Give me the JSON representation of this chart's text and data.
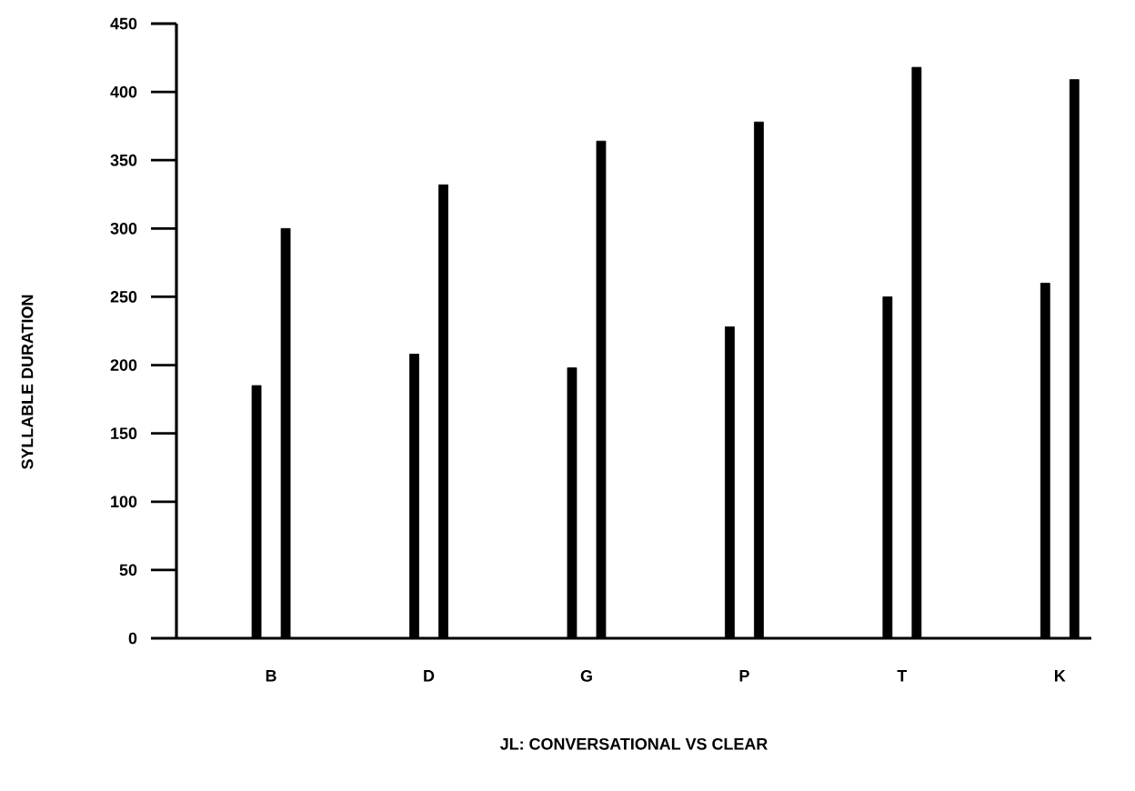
{
  "chart_data": {
    "type": "bar",
    "xlabel": "JL: CONVERSATIONAL VS CLEAR",
    "ylabel": "SYLLABLE DURATION",
    "categories": [
      "B",
      "D",
      "G",
      "P",
      "T",
      "K"
    ],
    "series": [
      {
        "color": "#000000",
        "values": [
          185,
          208,
          198,
          228,
          250,
          260
        ]
      },
      {
        "color": "#000000",
        "values": [
          300,
          332,
          364,
          378,
          418,
          409
        ]
      }
    ],
    "ylim": [
      0,
      450
    ],
    "yticks": [
      0,
      50,
      100,
      150,
      200,
      250,
      300,
      350,
      400,
      450
    ],
    "grid": false
  }
}
